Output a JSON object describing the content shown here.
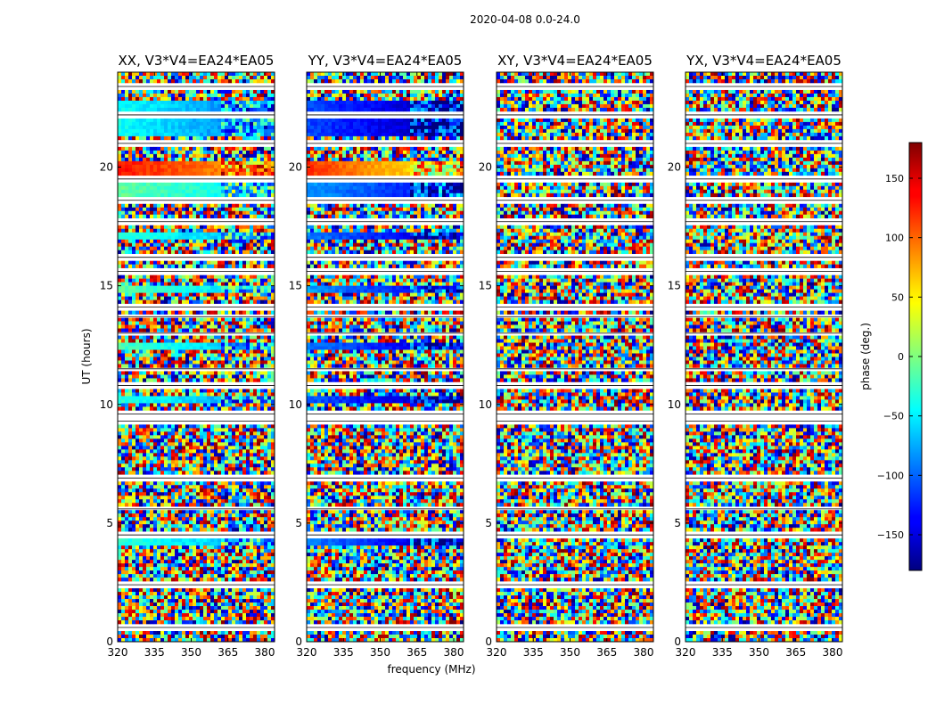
{
  "chart_data": {
    "type": "heatmap",
    "suptitle": "2020-04-08 0.0-24.0",
    "xlabel": "frequency (MHz)",
    "ylabel": "UT (hours)",
    "xlim": [
      320,
      384
    ],
    "ylim": [
      0,
      24
    ],
    "xticks": [
      320,
      335,
      350,
      365,
      380
    ],
    "yticks": [
      0,
      5,
      10,
      15,
      20
    ],
    "panels": [
      {
        "title": "XX, V3*V4=EA24*EA05",
        "coherent_bands": [
          {
            "t0": 4.1,
            "t1": 4.4,
            "phase_low": -30,
            "phase_high": -60
          },
          {
            "t0": 10.0,
            "t1": 10.3,
            "phase_low": -30,
            "phase_high": -70
          },
          {
            "t0": 12.3,
            "t1": 12.6,
            "phase_low": -20,
            "phase_high": -60
          },
          {
            "t0": 14.7,
            "t1": 15.0,
            "phase_low": -10,
            "phase_high": -50
          },
          {
            "t0": 16.9,
            "t1": 17.2,
            "phase_low": -30,
            "phase_high": -60
          },
          {
            "t0": 18.7,
            "t1": 19.3,
            "phase_low": -10,
            "phase_high": -40
          },
          {
            "t0": 19.7,
            "t1": 20.2,
            "phase_low": 130,
            "phase_high": 90
          },
          {
            "t0": 21.3,
            "t1": 22.8,
            "phase_low": -40,
            "phase_high": -80
          }
        ]
      },
      {
        "title": "YY, V3*V4=EA24*EA05",
        "coherent_bands": [
          {
            "t0": 4.1,
            "t1": 4.4,
            "phase_low": -90,
            "phase_high": -140
          },
          {
            "t0": 10.0,
            "t1": 10.3,
            "phase_low": -100,
            "phase_high": -150
          },
          {
            "t0": 12.3,
            "t1": 12.6,
            "phase_low": -90,
            "phase_high": -140
          },
          {
            "t0": 14.7,
            "t1": 15.0,
            "phase_low": -80,
            "phase_high": -130
          },
          {
            "t0": 16.9,
            "t1": 17.2,
            "phase_low": -90,
            "phase_high": -140
          },
          {
            "t0": 18.7,
            "t1": 19.3,
            "phase_low": -80,
            "phase_high": -120
          },
          {
            "t0": 19.7,
            "t1": 20.2,
            "phase_low": 120,
            "phase_high": 60
          },
          {
            "t0": 21.3,
            "t1": 22.8,
            "phase_low": -110,
            "phase_high": -150
          }
        ]
      },
      {
        "title": "XY, V3*V4=EA24*EA05",
        "coherent_bands": []
      },
      {
        "title": "YX, V3*V4=EA24*EA05",
        "coherent_bands": []
      }
    ],
    "flagged_times_hours": [
      0.6,
      2.4,
      4.5,
      5.6,
      6.9,
      9.3,
      9.6,
      10.8,
      11.5,
      13.0,
      13.7,
      14.1,
      15.6,
      16.2,
      17.7,
      18.6,
      19.5,
      21.0,
      22.2,
      23.4
    ],
    "colorbar": {
      "label": "phase (deg.)",
      "vmin": -180,
      "vmax": 180,
      "ticks": [
        -150,
        -100,
        -50,
        0,
        50,
        100,
        150
      ],
      "tick_labels": [
        "−150",
        "−100",
        "−50",
        "0",
        "50",
        "100",
        "150"
      ],
      "colormap": "jet"
    }
  }
}
